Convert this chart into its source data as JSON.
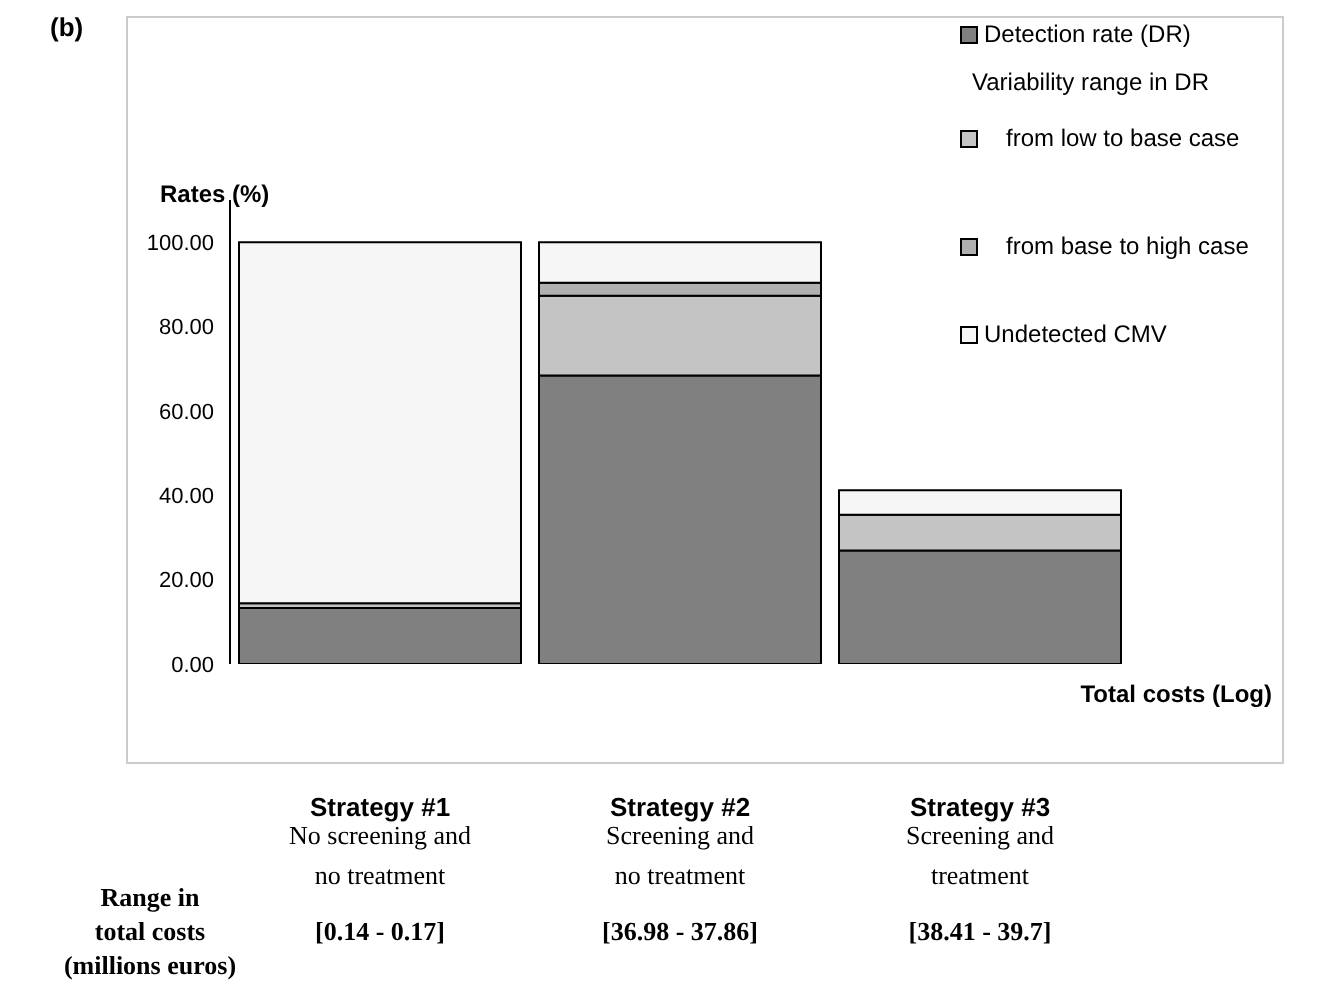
{
  "chart_data": {
    "type": "bar",
    "title": "(b)",
    "ylabel": "Rates (%)",
    "xlabel": "Total costs (Log)",
    "legend_title": "Variability range in DR",
    "categories": [
      "Strategy #1",
      "Strategy #2",
      "Strategy #3"
    ],
    "stacked": true,
    "series": [
      {
        "name": "Detection rate (DR)",
        "color": "#808080",
        "values": [
          13.3,
          68.4,
          26.9
        ]
      },
      {
        "name": "from low to base case",
        "color": "#c4c4c4",
        "values": [
          1.1,
          18.9,
          8.5
        ]
      },
      {
        "name": "from base to high case",
        "color": "#b0b0b0",
        "values": [
          null,
          3.1,
          null
        ]
      },
      {
        "name": "Undetected CMV",
        "color": "#f6f6f6",
        "values": [
          85.6,
          9.6,
          5.8
        ]
      }
    ],
    "ylim": [
      0,
      110
    ],
    "yticks": [
      {
        "value": 0,
        "label": "0.00"
      },
      {
        "value": 20,
        "label": "20.00"
      },
      {
        "value": 40,
        "label": "40.00"
      },
      {
        "value": 60,
        "label": "60.00"
      },
      {
        "value": 80,
        "label": "80.00"
      },
      {
        "value": 100,
        "label": "100.00"
      }
    ],
    "grid": false,
    "legend": "top right",
    "annotations": [
      "No screening and\nno treatment",
      "Screening and\nno treatment",
      "Screening and\ntreatment",
      "Range in\ntotal costs\n(millions euros)",
      "[0.14 - 0.17]",
      "[36.98 - 37.86]",
      "[38.41 - 39.7]"
    ]
  }
}
